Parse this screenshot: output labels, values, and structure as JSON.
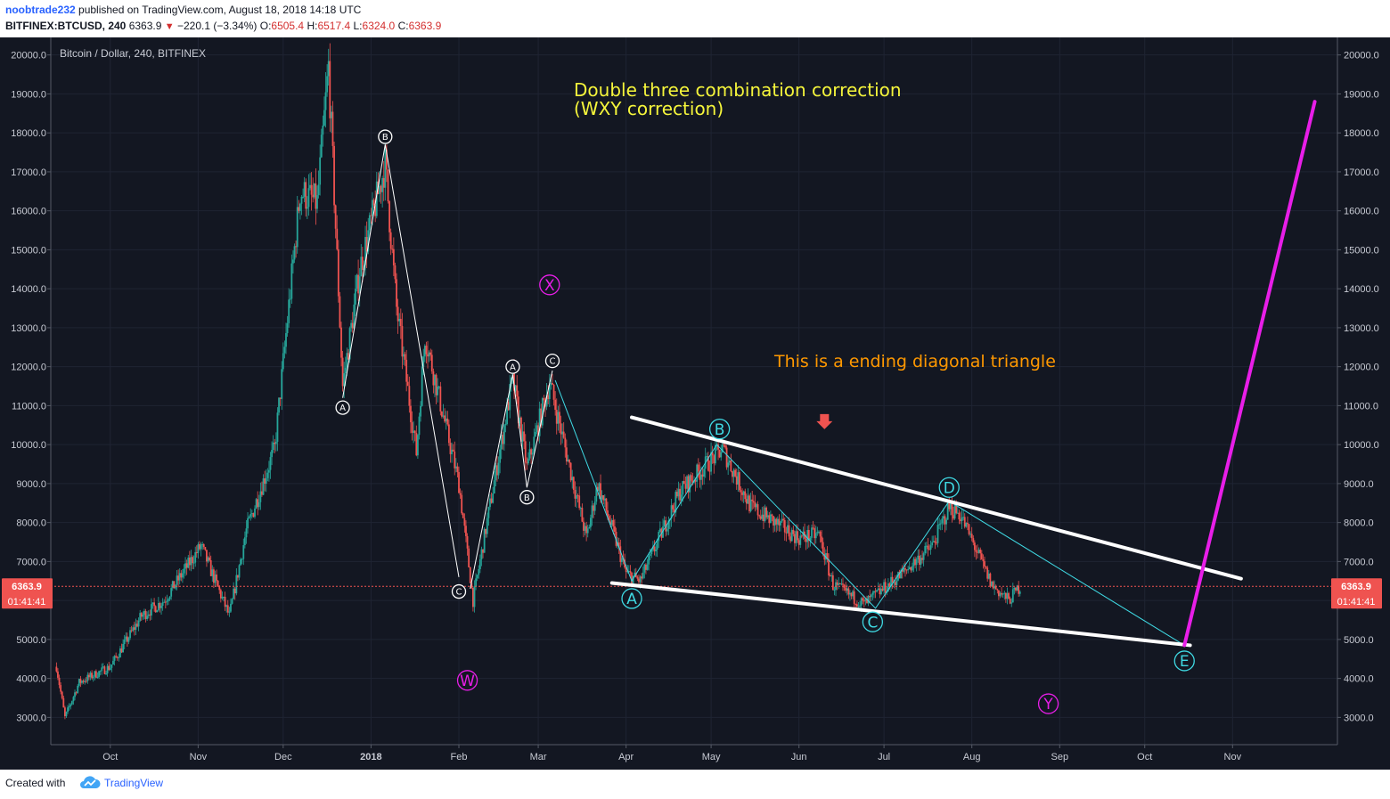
{
  "header": {
    "author": "noobtrade232",
    "published_text": "published on TradingView.com, August 18, 2018 14:18 UTC",
    "symbol": "BITFINEX:BTCUSD, 240",
    "last": "6363.9",
    "change": "−220.1 (−3.34%)",
    "o_label": "O:",
    "o_value": "6505.4",
    "h_label": "H:",
    "h_value": "6517.4",
    "l_label": "L:",
    "l_value": "6324.0",
    "c_label": "C:",
    "c_value": "6363.9"
  },
  "footer": {
    "created_with": "Created with",
    "brand": "TradingView"
  },
  "colors": {
    "background": "#131722",
    "up": "#26a69a",
    "down": "#ef5350",
    "cyan": "#3fd9e3",
    "magenta": "#e81ee8",
    "yellow": "#f5f53b",
    "orange": "#ff9800",
    "white_line": "#ffffff",
    "price_line": "#ef5350"
  },
  "chart_data": {
    "type": "candlestick",
    "title": "Bitcoin / Dollar, 240, BITFINEX",
    "y_ticks": [
      "3000.0",
      "4000.0",
      "5000.0",
      "6000.0",
      "7000.0",
      "8000.0",
      "9000.0",
      "10000.0",
      "11000.0",
      "12000.0",
      "13000.0",
      "14000.0",
      "15000.0",
      "16000.0",
      "17000.0",
      "18000.0",
      "19000.0",
      "20000.0"
    ],
    "ylim": [
      2300,
      20450
    ],
    "x_ticks": [
      "Oct",
      "Nov",
      "Dec",
      "2018",
      "Feb",
      "Mar",
      "Apr",
      "May",
      "Jun",
      "Jul",
      "Aug",
      "Sep",
      "Oct",
      "Nov"
    ],
    "x_tick_dates": [
      "2017-10-01",
      "2017-11-01",
      "2017-12-01",
      "2018-01-01",
      "2018-02-01",
      "2018-03-01",
      "2018-04-01",
      "2018-05-01",
      "2018-06-01",
      "2018-07-01",
      "2018-08-01",
      "2018-09-01",
      "2018-10-01",
      "2018-11-01"
    ],
    "xlim": [
      "2017-09-10",
      "2018-12-08"
    ],
    "last_price": "6363.9",
    "countdown": "01:41:41",
    "price_path": [
      [
        "2017-09-12",
        4300
      ],
      [
        "2017-09-15",
        3000
      ],
      [
        "2017-09-20",
        3900
      ],
      [
        "2017-10-01",
        4300
      ],
      [
        "2017-10-12",
        5600
      ],
      [
        "2017-10-20",
        6000
      ],
      [
        "2017-11-02",
        7400
      ],
      [
        "2017-11-12",
        5600
      ],
      [
        "2017-11-18",
        7800
      ],
      [
        "2017-11-28",
        9900
      ],
      [
        "2017-12-07",
        16500
      ],
      [
        "2017-12-13",
        16200
      ],
      [
        "2017-12-17",
        19700
      ],
      [
        "2017-12-22",
        11500
      ],
      [
        "2017-12-28",
        14500
      ],
      [
        "2018-01-06",
        17200
      ],
      [
        "2018-01-10",
        13500
      ],
      [
        "2018-01-17",
        9800
      ],
      [
        "2018-01-20",
        12800
      ],
      [
        "2018-02-01",
        9000
      ],
      [
        "2018-02-06",
        6000
      ],
      [
        "2018-02-20",
        11700
      ],
      [
        "2018-02-25",
        9400
      ],
      [
        "2018-03-05",
        11600
      ],
      [
        "2018-03-18",
        7600
      ],
      [
        "2018-03-22",
        9000
      ],
      [
        "2018-04-01",
        6700
      ],
      [
        "2018-04-06",
        6500
      ],
      [
        "2018-04-20",
        8800
      ],
      [
        "2018-05-05",
        9900
      ],
      [
        "2018-05-15",
        8400
      ],
      [
        "2018-06-01",
        7600
      ],
      [
        "2018-06-08",
        7700
      ],
      [
        "2018-06-13",
        6400
      ],
      [
        "2018-06-24",
        5900
      ],
      [
        "2018-07-06",
        6600
      ],
      [
        "2018-07-18",
        7400
      ],
      [
        "2018-07-24",
        8400
      ],
      [
        "2018-07-28",
        8200
      ],
      [
        "2018-08-08",
        6400
      ],
      [
        "2018-08-14",
        6000
      ],
      [
        "2018-08-18",
        6364
      ]
    ],
    "trendlines": [
      {
        "name": "upper-boundary",
        "color": "#ffffff",
        "points": [
          [
            "2018-04-03",
            10700
          ],
          [
            "2018-11-04",
            6560
          ]
        ]
      },
      {
        "name": "lower-boundary",
        "color": "#ffffff",
        "points": [
          [
            "2018-03-27",
            6450
          ],
          [
            "2018-10-17",
            4850
          ]
        ]
      },
      {
        "name": "breakout-projection",
        "color": "#e81ee8",
        "points": [
          [
            "2018-10-15",
            4850
          ],
          [
            "2018-11-30",
            18800
          ]
        ]
      }
    ],
    "wave_paths": [
      {
        "name": "white-abc-1",
        "color": "#ffffff",
        "points": [
          [
            "2017-12-22",
            11200
          ],
          [
            "2018-01-06",
            17700
          ],
          [
            "2018-02-01",
            6600
          ]
        ]
      },
      {
        "name": "white-abc-2",
        "color": "#ffffff",
        "points": [
          [
            "2018-02-05",
            6300
          ],
          [
            "2018-02-20",
            11800
          ],
          [
            "2018-02-25",
            8900
          ],
          [
            "2018-03-06",
            11900
          ]
        ]
      },
      {
        "name": "cyan-abcde",
        "color": "#3fd9e3",
        "points": [
          [
            "2018-03-07",
            11650
          ],
          [
            "2018-04-03",
            6500
          ],
          [
            "2018-05-03",
            10000
          ],
          [
            "2018-06-28",
            5800
          ],
          [
            "2018-07-24",
            8550
          ],
          [
            "2018-10-15",
            4850
          ]
        ]
      }
    ],
    "wave_labels": [
      {
        "text": "A",
        "color": "#ffffff",
        "size": "small",
        "date": "2017-12-22",
        "price": 10950
      },
      {
        "text": "B",
        "color": "#ffffff",
        "size": "small",
        "date": "2018-01-06",
        "price": 17900
      },
      {
        "text": "C",
        "color": "#ffffff",
        "size": "small",
        "date": "2018-02-01",
        "price": 6230
      },
      {
        "text": "A",
        "color": "#ffffff",
        "size": "small",
        "date": "2018-02-20",
        "price": 12000
      },
      {
        "text": "B",
        "color": "#ffffff",
        "size": "small",
        "date": "2018-02-25",
        "price": 8650
      },
      {
        "text": "C",
        "color": "#ffffff",
        "size": "small",
        "date": "2018-03-06",
        "price": 12150
      },
      {
        "text": "A",
        "color": "#3fd9e3",
        "size": "large",
        "date": "2018-04-03",
        "price": 6050
      },
      {
        "text": "B",
        "color": "#3fd9e3",
        "size": "large",
        "date": "2018-05-04",
        "price": 10400
      },
      {
        "text": "C",
        "color": "#3fd9e3",
        "size": "large",
        "date": "2018-06-27",
        "price": 5450
      },
      {
        "text": "D",
        "color": "#3fd9e3",
        "size": "large",
        "date": "2018-07-24",
        "price": 8900
      },
      {
        "text": "E",
        "color": "#3fd9e3",
        "size": "large",
        "date": "2018-10-15",
        "price": 4450
      },
      {
        "text": "W",
        "color": "#e81ee8",
        "size": "large",
        "date": "2018-02-04",
        "price": 3950
      },
      {
        "text": "X",
        "color": "#e81ee8",
        "size": "large",
        "date": "2018-03-05",
        "price": 14100
      },
      {
        "text": "Y",
        "color": "#e81ee8",
        "size": "large",
        "date": "2018-08-28",
        "price": 3350
      }
    ],
    "annotations": [
      {
        "name": "title-note-line1",
        "text": "Double three combination correction",
        "color": "#f5f53b"
      },
      {
        "name": "title-note-line2",
        "text": "(WXY correction)",
        "color": "#f5f53b"
      },
      {
        "name": "triangle-note",
        "text": "This is a ending diagonal triangle",
        "color": "#ff9800"
      }
    ],
    "arrow_marker": {
      "name": "down-arrow-marker",
      "color": "#ef5350",
      "date": "2018-06-10",
      "price": 10600
    }
  }
}
